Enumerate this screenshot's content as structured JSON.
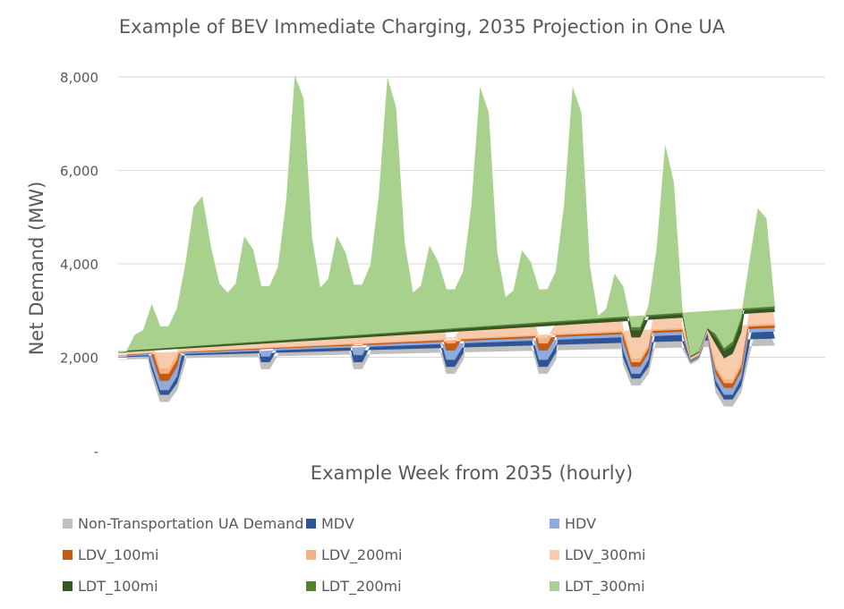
{
  "chart_data": {
    "type": "area",
    "stacked": true,
    "title": "Example of BEV Immediate Charging, 2035 Projection in One UA",
    "xlabel": "Example Week from 2035 (hourly)",
    "ylabel": "Net Demand (MW)",
    "ylim": [
      0,
      8500
    ],
    "yticks": [
      "-",
      "2,000",
      "4,000",
      "6,000",
      "8,000"
    ],
    "ytick_values": [
      0,
      2000,
      4000,
      6000,
      8000
    ],
    "grid": true,
    "legend_position": "bottom",
    "x_hours": [
      0,
      2,
      4,
      6,
      8,
      10,
      12,
      14,
      16,
      18,
      20,
      22,
      24,
      26,
      28,
      30,
      32,
      34,
      36,
      38,
      40,
      42,
      44,
      46,
      48,
      50,
      52,
      54,
      56,
      58,
      60,
      62,
      64,
      66,
      68,
      70,
      72,
      74,
      76,
      78,
      80,
      82,
      84,
      86,
      88,
      90,
      92,
      94,
      96,
      98,
      100,
      102,
      104,
      106,
      108,
      110,
      112,
      114,
      116,
      118,
      120,
      122,
      124,
      126,
      128,
      130,
      132,
      134,
      136,
      138,
      140,
      142,
      144,
      146,
      148,
      150,
      152,
      154,
      156,
      158,
      160,
      162,
      164,
      166,
      168
    ],
    "series": [
      {
        "name": "Non-Transportation UA Demand",
        "color": "#bfbfbf",
        "values": [
          1950,
          1950,
          2300,
          2400,
          1600,
          1050,
          1050,
          1300,
          1900,
          2800,
          3400,
          3600,
          3400,
          3200,
          3400,
          4400,
          2600,
          1750,
          1750,
          2050,
          3100,
          5000,
          4800,
          3600,
          3300,
          3500,
          4400,
          2500,
          1750,
          1750,
          2100,
          3200,
          5000,
          4700,
          3500,
          3200,
          3350,
          4200,
          2300,
          1650,
          1650,
          1950,
          3000,
          4800,
          4600,
          3300,
          3100,
          3250,
          4100,
          2300,
          1650,
          1650,
          1950,
          3000,
          4800,
          4600,
          3000,
          2700,
          2850,
          3600,
          1850,
          1400,
          1400,
          1650,
          2400,
          4150,
          3700,
          2200,
          1850,
          1950,
          2450,
          1250,
          950,
          950,
          1250,
          2050,
          2800,
          2700,
          2250
        ]
      },
      {
        "name": "MDV",
        "color": "#2f5597",
        "values": [
          50,
          50,
          50,
          50,
          150,
          150,
          150,
          150,
          200,
          350,
          300,
          120,
          50,
          50,
          50,
          50,
          150,
          150,
          150,
          150,
          250,
          500,
          500,
          150,
          50,
          50,
          50,
          150,
          150,
          150,
          150,
          250,
          450,
          400,
          150,
          50,
          50,
          50,
          150,
          150,
          150,
          150,
          250,
          450,
          400,
          150,
          50,
          50,
          50,
          150,
          150,
          150,
          150,
          250,
          450,
          400,
          150,
          50,
          50,
          50,
          150,
          150,
          150,
          150,
          250,
          400,
          350,
          150,
          50,
          50,
          50,
          150,
          150,
          150,
          150,
          250,
          400,
          400,
          150
        ]
      },
      {
        "name": "HDV",
        "color": "#8faadc",
        "values": [
          20,
          20,
          20,
          20,
          100,
          100,
          100,
          150,
          300,
          450,
          400,
          100,
          20,
          20,
          20,
          20,
          120,
          120,
          120,
          150,
          300,
          700,
          600,
          200,
          20,
          20,
          20,
          150,
          150,
          150,
          150,
          300,
          700,
          600,
          200,
          20,
          20,
          20,
          150,
          150,
          150,
          150,
          300,
          700,
          600,
          200,
          20,
          20,
          20,
          150,
          150,
          150,
          150,
          300,
          700,
          600,
          200,
          20,
          20,
          20,
          150,
          100,
          100,
          150,
          250,
          500,
          400,
          150,
          20,
          20,
          20,
          100,
          100,
          100,
          150,
          300,
          500,
          450,
          150
        ]
      },
      {
        "name": "LDV_100mi",
        "color": "#c55a11",
        "values": [
          20,
          20,
          20,
          20,
          200,
          200,
          200,
          200,
          200,
          180,
          150,
          80,
          20,
          20,
          20,
          20,
          200,
          200,
          200,
          200,
          200,
          220,
          200,
          80,
          20,
          20,
          20,
          200,
          200,
          200,
          200,
          200,
          220,
          200,
          80,
          20,
          20,
          20,
          200,
          200,
          200,
          200,
          200,
          220,
          200,
          80,
          20,
          20,
          20,
          200,
          200,
          200,
          200,
          200,
          220,
          200,
          80,
          20,
          20,
          20,
          200,
          150,
          150,
          150,
          180,
          200,
          180,
          80,
          20,
          20,
          20,
          150,
          150,
          150,
          150,
          180,
          200,
          200,
          80
        ]
      },
      {
        "name": "LDV_200mi",
        "color": "#f4b183",
        "values": [
          10,
          10,
          10,
          10,
          150,
          150,
          150,
          150,
          150,
          140,
          120,
          50,
          10,
          10,
          10,
          10,
          150,
          150,
          150,
          150,
          150,
          150,
          140,
          50,
          10,
          10,
          10,
          150,
          150,
          150,
          150,
          150,
          150,
          140,
          50,
          10,
          10,
          10,
          150,
          150,
          150,
          150,
          150,
          150,
          140,
          50,
          10,
          10,
          10,
          150,
          150,
          150,
          150,
          150,
          150,
          140,
          50,
          10,
          10,
          10,
          150,
          100,
          100,
          100,
          120,
          140,
          120,
          50,
          10,
          10,
          10,
          100,
          100,
          100,
          100,
          120,
          140,
          140,
          50
        ]
      },
      {
        "name": "LDV_300mi",
        "color": "#f8cbad",
        "values": [
          10,
          10,
          10,
          10,
          120,
          120,
          120,
          120,
          120,
          110,
          100,
          40,
          10,
          10,
          10,
          10,
          120,
          120,
          120,
          120,
          120,
          120,
          110,
          40,
          10,
          10,
          10,
          120,
          120,
          120,
          120,
          120,
          120,
          110,
          40,
          10,
          10,
          10,
          120,
          120,
          120,
          120,
          120,
          120,
          110,
          40,
          10,
          10,
          10,
          120,
          120,
          120,
          120,
          120,
          120,
          110,
          40,
          10,
          10,
          10,
          120,
          80,
          80,
          80,
          100,
          110,
          100,
          40,
          10,
          10,
          10,
          80,
          80,
          80,
          80,
          100,
          110,
          110,
          40
        ]
      },
      {
        "name": "LDT_100mi",
        "color": "#375623",
        "values": [
          40,
          40,
          40,
          40,
          550,
          600,
          600,
          650,
          750,
          800,
          650,
          250,
          40,
          40,
          40,
          40,
          650,
          700,
          700,
          750,
          850,
          900,
          800,
          300,
          40,
          40,
          40,
          650,
          700,
          700,
          750,
          850,
          900,
          800,
          300,
          40,
          40,
          40,
          650,
          700,
          700,
          750,
          850,
          900,
          800,
          300,
          40,
          40,
          40,
          650,
          700,
          700,
          750,
          850,
          900,
          800,
          300,
          40,
          40,
          40,
          600,
          450,
          450,
          550,
          700,
          700,
          600,
          250,
          40,
          40,
          40,
          450,
          450,
          550,
          650,
          700,
          700,
          650,
          250
        ]
      },
      {
        "name": "LDT_200mi",
        "color": "#548235",
        "values": [
          20,
          20,
          20,
          20,
          180,
          200,
          200,
          220,
          250,
          270,
          220,
          80,
          20,
          20,
          20,
          20,
          220,
          230,
          230,
          250,
          280,
          300,
          270,
          100,
          20,
          20,
          20,
          220,
          230,
          230,
          250,
          280,
          300,
          270,
          100,
          20,
          20,
          20,
          220,
          230,
          230,
          250,
          280,
          300,
          270,
          100,
          20,
          20,
          20,
          220,
          230,
          230,
          250,
          280,
          300,
          270,
          100,
          20,
          20,
          20,
          200,
          150,
          150,
          180,
          230,
          230,
          200,
          80,
          20,
          20,
          20,
          150,
          150,
          180,
          220,
          230,
          230,
          220,
          80
        ]
      },
      {
        "name": "LDT_300mi",
        "color": "#a9d18e",
        "values": [
          10,
          10,
          10,
          10,
          80,
          90,
          90,
          100,
          110,
          120,
          100,
          40,
          10,
          10,
          10,
          10,
          100,
          100,
          100,
          110,
          120,
          130,
          120,
          50,
          10,
          10,
          10,
          100,
          100,
          100,
          110,
          120,
          130,
          120,
          50,
          10,
          10,
          10,
          100,
          100,
          100,
          110,
          120,
          130,
          120,
          50,
          10,
          10,
          10,
          100,
          100,
          100,
          110,
          120,
          130,
          120,
          50,
          10,
          10,
          10,
          90,
          70,
          70,
          80,
          100,
          100,
          90,
          40,
          10,
          10,
          10,
          70,
          70,
          80,
          100,
          100,
          100,
          100,
          40
        ]
      }
    ]
  }
}
